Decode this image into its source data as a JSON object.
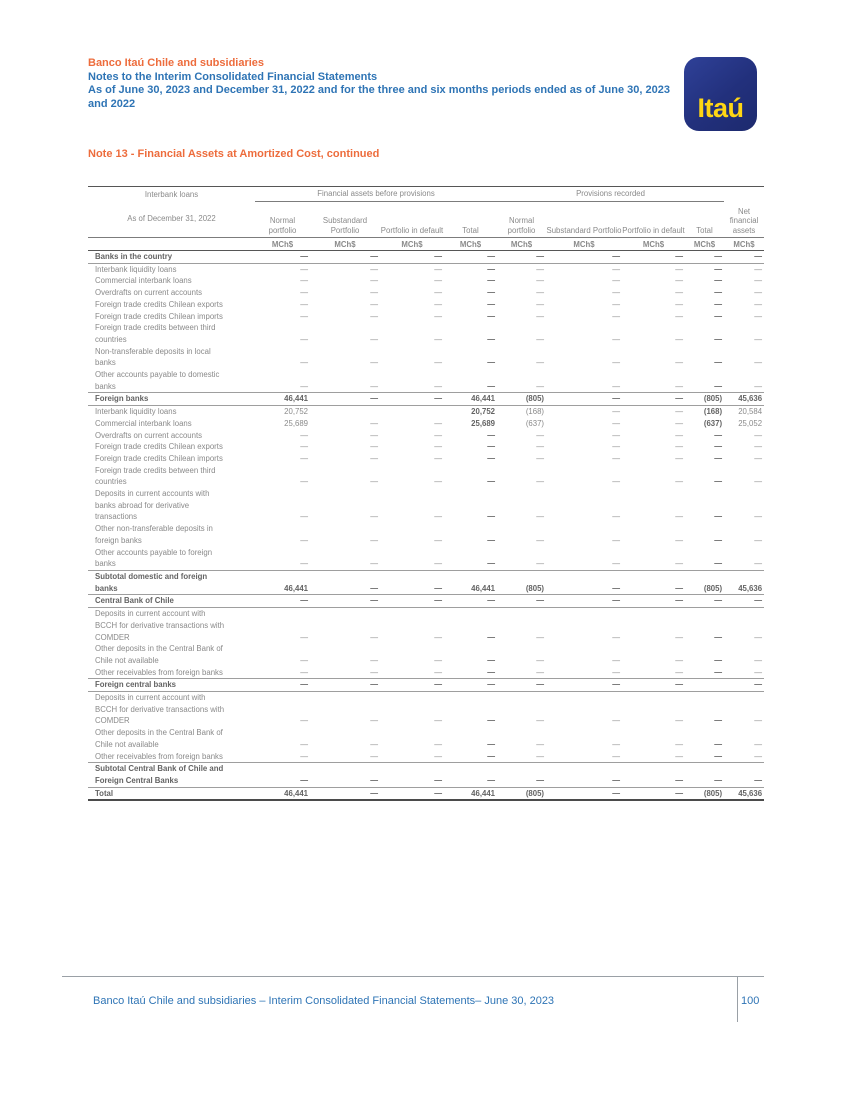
{
  "header": {
    "company": "Banco Itaú Chile and subsidiaries",
    "doc_title": "Notes to the Interim Consolidated Financial Statements",
    "period": "As of June 30, 2023 and December 31, 2022 and for the three and six months periods ended as of June 30, 2023 and 2022",
    "logo_text": "Itaú"
  },
  "note_title": "Note 13 - Financial Assets at Amortized Cost, continued",
  "colors": {
    "accent_orange": "#ED6C3C",
    "heading_blue": "#2E74B5",
    "logo_navy": "#22307C",
    "logo_yellow": "#FFD614"
  },
  "table": {
    "corner_title": "Interbank loans",
    "corner_subtitle": "As of December 31, 2022",
    "group1": "Financial assets before provisions",
    "group2": "Provisions recorded",
    "columns": [
      "Normal portfolio",
      "Substandard Portfolio",
      "Portfolio in default",
      "Total",
      "Normal portfolio",
      "Substandard Portfolio",
      "Portfolio in default",
      "Total",
      "Net financial assets"
    ],
    "unit": "MCh$",
    "rows": [
      {
        "label": "Banks in the country",
        "style": "section",
        "values": [
          "—",
          "—",
          "—",
          "—",
          "—",
          "—",
          "—",
          "—",
          "—"
        ]
      },
      {
        "label": "Interbank liquidity loans",
        "style": "plain",
        "values": [
          "—",
          "—",
          "—",
          "—",
          "—",
          "—",
          "—",
          "—",
          "—"
        ]
      },
      {
        "label": "Commercial interbank loans",
        "style": "plain",
        "values": [
          "—",
          "—",
          "—",
          "—",
          "—",
          "—",
          "—",
          "—",
          "—"
        ]
      },
      {
        "label": "Overdrafts on current accounts",
        "style": "plain",
        "values": [
          "—",
          "—",
          "—",
          "—",
          "—",
          "—",
          "—",
          "—",
          "—"
        ]
      },
      {
        "label": "Foreign trade credits Chilean exports",
        "style": "plain",
        "values": [
          "—",
          "—",
          "—",
          "—",
          "—",
          "—",
          "—",
          "—",
          "—"
        ]
      },
      {
        "label": "Foreign trade credits Chilean imports",
        "style": "plain",
        "values": [
          "—",
          "—",
          "—",
          "—",
          "—",
          "—",
          "—",
          "—",
          "—"
        ]
      },
      {
        "label": "Foreign trade credits between third countries",
        "style": "plain",
        "values": [
          "—",
          "—",
          "—",
          "—",
          "—",
          "—",
          "—",
          "—",
          "—"
        ]
      },
      {
        "label": "Non-transferable deposits in local banks",
        "style": "plain",
        "values": [
          "—",
          "—",
          "—",
          "—",
          "—",
          "—",
          "—",
          "—",
          "—"
        ]
      },
      {
        "label": "Other accounts payable to domestic banks",
        "style": "plain",
        "values": [
          "—",
          "—",
          "—",
          "—",
          "—",
          "—",
          "—",
          "—",
          "—"
        ]
      },
      {
        "label": "Foreign banks",
        "style": "section",
        "values": [
          "46,441",
          "—",
          "—",
          "46,441",
          "(805)",
          "—",
          "—",
          "(805)",
          "45,636"
        ]
      },
      {
        "label": "Interbank liquidity loans",
        "style": "plain",
        "values": [
          "20,752",
          "",
          "",
          "20,752",
          "(168)",
          "—",
          "—",
          "(168)",
          "20,584"
        ]
      },
      {
        "label": "Commercial interbank loans",
        "style": "plain",
        "values": [
          "25,689",
          "—",
          "—",
          "25,689",
          "(637)",
          "—",
          "—",
          "(637)",
          "25,052"
        ]
      },
      {
        "label": "Overdrafts on current accounts",
        "style": "plain",
        "values": [
          "—",
          "—",
          "—",
          "—",
          "—",
          "—",
          "—",
          "—",
          "—"
        ]
      },
      {
        "label": "Foreign trade credits Chilean exports",
        "style": "plain",
        "values": [
          "—",
          "—",
          "—",
          "—",
          "—",
          "—",
          "—",
          "—",
          "—"
        ]
      },
      {
        "label": "Foreign trade credits Chilean imports",
        "style": "plain",
        "values": [
          "—",
          "—",
          "—",
          "—",
          "—",
          "—",
          "—",
          "—",
          "—"
        ]
      },
      {
        "label": "Foreign trade credits between third countries",
        "style": "plain",
        "values": [
          "—",
          "—",
          "—",
          "—",
          "—",
          "—",
          "—",
          "—",
          "—"
        ]
      },
      {
        "label": "Deposits in current accounts with banks abroad for derivative transactions",
        "style": "plain",
        "values": [
          "—",
          "—",
          "—",
          "—",
          "—",
          "—",
          "—",
          "—",
          "—"
        ]
      },
      {
        "label": "Other non-transferable deposits in foreign banks",
        "style": "plain",
        "values": [
          "—",
          "—",
          "—",
          "—",
          "—",
          "—",
          "—",
          "—",
          "—"
        ]
      },
      {
        "label": "Other accounts payable to foreign banks",
        "style": "plain",
        "values": [
          "—",
          "—",
          "—",
          "—",
          "—",
          "—",
          "—",
          "—",
          "—"
        ]
      },
      {
        "label": "Subtotal domestic and foreign banks",
        "style": "section",
        "values": [
          "46,441",
          "—",
          "—",
          "46,441",
          "(805)",
          "—",
          "—",
          "(805)",
          "45,636"
        ]
      },
      {
        "label": "Central Bank of Chile",
        "style": "section",
        "values": [
          "—",
          "—",
          "—",
          "—",
          "—",
          "—",
          "—",
          "—",
          "—"
        ]
      },
      {
        "label": "Deposits in current account with BCCH for derivative transactions with COMDER",
        "style": "plain",
        "values": [
          "—",
          "—",
          "—",
          "—",
          "—",
          "—",
          "—",
          "—",
          "—"
        ]
      },
      {
        "label": "Other deposits in the Central Bank of Chile not available",
        "style": "plain",
        "values": [
          "—",
          "—",
          "—",
          "—",
          "—",
          "—",
          "—",
          "—",
          "—"
        ]
      },
      {
        "label": "Other receivables from foreign banks",
        "style": "plain",
        "values": [
          "—",
          "—",
          "—",
          "—",
          "—",
          "—",
          "—",
          "—",
          "—"
        ]
      },
      {
        "label": "Foreign central banks",
        "style": "section",
        "values": [
          "—",
          "—",
          "—",
          "—",
          "—",
          "—",
          "—",
          "",
          "—"
        ]
      },
      {
        "label": "Deposits in current account with BCCH for derivative transactions with COMDER",
        "style": "plain",
        "values": [
          "—",
          "—",
          "—",
          "—",
          "—",
          "—",
          "—",
          "—",
          "—"
        ]
      },
      {
        "label": "Other deposits in the Central Bank of Chile not available",
        "style": "plain",
        "values": [
          "—",
          "—",
          "—",
          "—",
          "—",
          "—",
          "—",
          "—",
          "—"
        ]
      },
      {
        "label": "Other receivables from foreign banks",
        "style": "plain",
        "values": [
          "—",
          "—",
          "—",
          "—",
          "—",
          "—",
          "—",
          "—",
          "—"
        ]
      },
      {
        "label": "Subtotal Central Bank of Chile and Foreign Central Banks",
        "style": "section",
        "values": [
          "—",
          "—",
          "—",
          "—",
          "—",
          "—",
          "—",
          "—",
          "—"
        ]
      },
      {
        "label": "Total",
        "style": "total",
        "values": [
          "46,441",
          "—",
          "—",
          "46,441",
          "(805)",
          "—",
          "—",
          "(805)",
          "45,636"
        ]
      }
    ]
  },
  "footer": {
    "text": "Banco Itaú Chile and subsidiaries – Interim Consolidated Financial Statements– June 30, 2023",
    "page": "100"
  }
}
